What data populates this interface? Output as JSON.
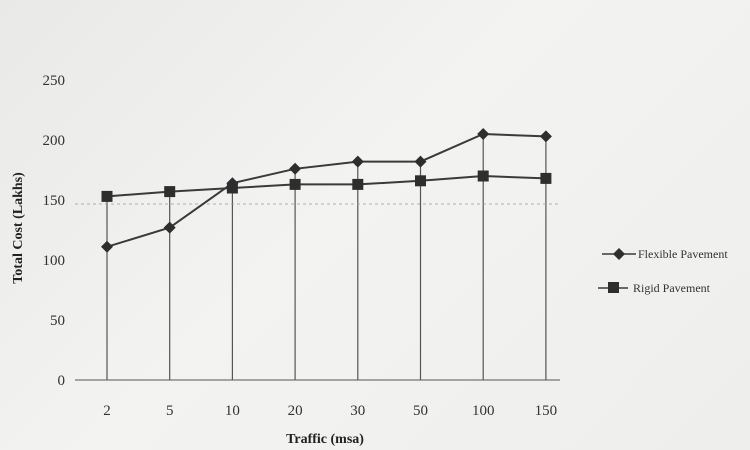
{
  "chart_data": {
    "type": "line",
    "title": "",
    "xlabel": "Traffic (msa)",
    "ylabel": "Total Cost (Lakhs)",
    "categories": [
      "2",
      "5",
      "10",
      "20",
      "30",
      "50",
      "100",
      "150"
    ],
    "ylim": [
      0,
      250
    ],
    "yticks": [
      "0",
      "50",
      "100",
      "150",
      "200",
      "250"
    ],
    "grid": "vertical",
    "legend_position": "right",
    "series": [
      {
        "name": "Flexible Pavement",
        "marker": "diamond",
        "values": [
          111,
          127,
          164,
          176,
          182,
          182,
          205,
          203
        ]
      },
      {
        "name": "Rigid Pavement",
        "marker": "square",
        "values": [
          153,
          157,
          160,
          163,
          163,
          166,
          170,
          168
        ]
      }
    ],
    "colors": {
      "line": "#3a3a3a",
      "grid": "#555555",
      "marker": "#2e2e2e"
    }
  }
}
